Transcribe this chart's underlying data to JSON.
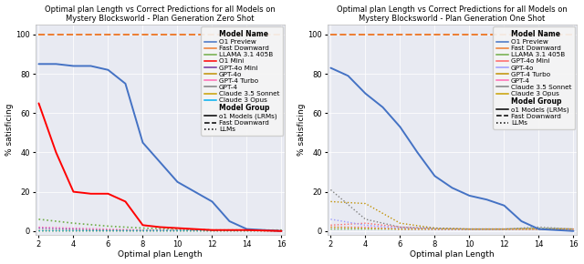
{
  "left_title": "Optimal plan Length vs Correct Predictions for all Models on\nMystery Blocksworld - Plan Generation Zero Shot",
  "right_title": "Optimal plan Length vs Correct Predictions for all Models on\nMystery Blocksworld - Plan Generation One Shot",
  "xlabel": "Optimal plan Length",
  "ylabel": "% satisficing",
  "x_ticks": [
    2,
    4,
    6,
    8,
    10,
    12,
    14,
    16
  ],
  "xlim": [
    1.8,
    16.2
  ],
  "ylim": [
    -2,
    105
  ],
  "y_ticks": [
    0,
    20,
    40,
    60,
    80,
    100
  ],
  "left_series": [
    {
      "label": "O1 Preview",
      "color": "#4472c4",
      "linestyle": "solid",
      "linewidth": 1.4,
      "zorder": 5,
      "x": [
        2,
        3,
        4,
        5,
        6,
        7,
        8,
        9,
        10,
        11,
        12,
        13,
        14,
        16
      ],
      "y": [
        85,
        85,
        84,
        84,
        82,
        75,
        45,
        35,
        25,
        20,
        15,
        5,
        1,
        0
      ]
    },
    {
      "label": "Fast Downward",
      "color": "#ed7d31",
      "linestyle": "dashed",
      "linewidth": 1.4,
      "zorder": 4,
      "x": [
        2,
        16
      ],
      "y": [
        100,
        100
      ]
    },
    {
      "label": "LLAMA 3.1 405B",
      "color": "#70ad47",
      "linestyle": "dotted",
      "linewidth": 1.2,
      "zorder": 3,
      "x": [
        2,
        4,
        6,
        8,
        10,
        12,
        14,
        16
      ],
      "y": [
        6,
        4,
        2.5,
        1.5,
        1,
        0.5,
        0.5,
        0.5
      ]
    },
    {
      "label": "O1 Mini",
      "color": "#ff0000",
      "linestyle": "solid",
      "linewidth": 1.4,
      "zorder": 5,
      "x": [
        2,
        3,
        4,
        5,
        6,
        7,
        8,
        9,
        10,
        11,
        12,
        13,
        14,
        16
      ],
      "y": [
        65,
        40,
        20,
        19,
        19,
        15,
        3,
        2,
        1.5,
        1,
        0.5,
        0.5,
        0.5,
        0
      ]
    },
    {
      "label": "GPT-4o Mini",
      "color": "#7030a0",
      "linestyle": "dotted",
      "linewidth": 1.0,
      "zorder": 2,
      "x": [
        2,
        4,
        6,
        8,
        10,
        12,
        14,
        16
      ],
      "y": [
        1.5,
        1,
        0.5,
        0.5,
        0.5,
        0.5,
        0.5,
        0.5
      ]
    },
    {
      "label": "GPT-4o",
      "color": "#c09000",
      "linestyle": "dotted",
      "linewidth": 1.0,
      "zorder": 2,
      "x": [
        2,
        4,
        6,
        8,
        10,
        12,
        14,
        16
      ],
      "y": [
        0.5,
        0.5,
        0.5,
        0.5,
        0.5,
        0.5,
        0.5,
        0.5
      ]
    },
    {
      "label": "GPT-4 Turbo",
      "color": "#ff69b4",
      "linestyle": "dotted",
      "linewidth": 1.0,
      "zorder": 2,
      "x": [
        2,
        4,
        6,
        8,
        10,
        12,
        14,
        16
      ],
      "y": [
        2,
        1.5,
        1,
        0.5,
        0.5,
        0.5,
        0.5,
        0.5
      ]
    },
    {
      "label": "GPT-4",
      "color": "#808080",
      "linestyle": "dotted",
      "linewidth": 1.0,
      "zorder": 2,
      "x": [
        2,
        4,
        6,
        8,
        10,
        12,
        14,
        16
      ],
      "y": [
        0.5,
        0.5,
        0.5,
        0.5,
        0.5,
        0.5,
        0.5,
        0.5
      ]
    },
    {
      "label": "Claude 3.5 Sonnet",
      "color": "#c8a000",
      "linestyle": "dotted",
      "linewidth": 1.0,
      "zorder": 2,
      "x": [
        2,
        4,
        6,
        8,
        10,
        12,
        14,
        16
      ],
      "y": [
        0.5,
        0.5,
        0.5,
        0.5,
        0.5,
        0.5,
        0.5,
        0.5
      ]
    },
    {
      "label": "Claude 3 Opus",
      "color": "#00b0f0",
      "linestyle": "dotted",
      "linewidth": 1.0,
      "zorder": 2,
      "x": [
        2,
        4,
        6,
        8,
        10,
        12,
        14,
        16
      ],
      "y": [
        0.5,
        0.5,
        0.5,
        0.5,
        0.5,
        0.5,
        0.5,
        0.5
      ]
    }
  ],
  "left_legend": [
    {
      "label": "Model Name",
      "header": true
    },
    {
      "label": "O1 Preview",
      "color": "#4472c4",
      "linestyle": "solid"
    },
    {
      "label": "Fast Downward",
      "color": "#ed7d31",
      "linestyle": "solid"
    },
    {
      "label": "LLAMA 3.1 405B",
      "color": "#70ad47",
      "linestyle": "solid"
    },
    {
      "label": "O1 Mini",
      "color": "#ff0000",
      "linestyle": "solid"
    },
    {
      "label": "GPT-4o Mini",
      "color": "#7030a0",
      "linestyle": "solid"
    },
    {
      "label": "GPT-4o",
      "color": "#c09000",
      "linestyle": "solid"
    },
    {
      "label": "GPT-4 Turbo",
      "color": "#ff69b4",
      "linestyle": "solid"
    },
    {
      "label": "GPT-4",
      "color": "#808080",
      "linestyle": "solid"
    },
    {
      "label": "Claude 3.5 Sonnet",
      "color": "#c8a000",
      "linestyle": "solid"
    },
    {
      "label": "Claude 3 Opus",
      "color": "#00b0f0",
      "linestyle": "solid"
    },
    {
      "label": "Model Group",
      "header": true
    },
    {
      "label": "o1 Models (LRMs)",
      "color": "#000000",
      "linestyle": "solid"
    },
    {
      "label": "Fast Downward",
      "color": "#000000",
      "linestyle": "dashed"
    },
    {
      "label": "LLMs",
      "color": "#000000",
      "linestyle": "dotted"
    }
  ],
  "right_series": [
    {
      "label": "O1 Preview",
      "color": "#4472c4",
      "linestyle": "solid",
      "linewidth": 1.4,
      "zorder": 5,
      "x": [
        2,
        3,
        4,
        5,
        6,
        7,
        8,
        9,
        10,
        11,
        12,
        13,
        14,
        16
      ],
      "y": [
        83,
        79,
        70,
        63,
        53,
        40,
        28,
        22,
        18,
        16,
        13,
        5,
        1,
        0
      ]
    },
    {
      "label": "Fast Downward",
      "color": "#ed7d31",
      "linestyle": "dashed",
      "linewidth": 1.4,
      "zorder": 4,
      "x": [
        2,
        16
      ],
      "y": [
        100,
        100
      ]
    },
    {
      "label": "LLAMA 3.1 405B",
      "color": "#70ad47",
      "linestyle": "dotted",
      "linewidth": 1.0,
      "zorder": 2,
      "x": [
        2,
        4,
        6,
        8,
        10,
        12,
        14,
        16
      ],
      "y": [
        1,
        1,
        1,
        1,
        1,
        1,
        1.5,
        1
      ]
    },
    {
      "label": "GPT-4o Mini",
      "color": "#ff6666",
      "linestyle": "dotted",
      "linewidth": 1.0,
      "zorder": 2,
      "x": [
        2,
        4,
        6,
        8,
        10,
        12,
        14,
        16
      ],
      "y": [
        3,
        4,
        2,
        1,
        1,
        1,
        1,
        1
      ]
    },
    {
      "label": "GPT-4o",
      "color": "#9999ff",
      "linestyle": "dotted",
      "linewidth": 1.0,
      "zorder": 2,
      "x": [
        2,
        4,
        6,
        8,
        10,
        12,
        14,
        16
      ],
      "y": [
        6,
        3,
        1.5,
        1,
        1,
        1,
        1,
        1
      ]
    },
    {
      "label": "GPT-4 Turbo",
      "color": "#c09000",
      "linestyle": "dotted",
      "linewidth": 1.0,
      "zorder": 2,
      "x": [
        2,
        4,
        6,
        8,
        10,
        12,
        14,
        16
      ],
      "y": [
        15,
        14,
        4,
        1.5,
        1,
        1,
        1,
        1
      ]
    },
    {
      "label": "GPT-4",
      "color": "#ff69b4",
      "linestyle": "dotted",
      "linewidth": 1.0,
      "zorder": 2,
      "x": [
        2,
        4,
        6,
        8,
        10,
        12,
        14,
        16
      ],
      "y": [
        2,
        2,
        1,
        1,
        1,
        1,
        1,
        1
      ]
    },
    {
      "label": "Claude 3.5 Sonnet",
      "color": "#808080",
      "linestyle": "dotted",
      "linewidth": 1.0,
      "zorder": 2,
      "x": [
        2,
        4,
        6,
        8,
        10,
        12,
        14,
        16
      ],
      "y": [
        21,
        6,
        2,
        1.5,
        1,
        1,
        2,
        1
      ]
    },
    {
      "label": "Claude 3 Opus",
      "color": "#c8a000",
      "linestyle": "dotted",
      "linewidth": 1.0,
      "zorder": 2,
      "x": [
        2,
        4,
        6,
        8,
        10,
        12,
        14,
        16
      ],
      "y": [
        2,
        1.5,
        1,
        1,
        1,
        1,
        1,
        1
      ]
    }
  ],
  "right_legend": [
    {
      "label": "Model Name",
      "header": true
    },
    {
      "label": "O1 Preview",
      "color": "#4472c4",
      "linestyle": "solid"
    },
    {
      "label": "Fast Downward",
      "color": "#ed7d31",
      "linestyle": "solid"
    },
    {
      "label": "LLAMA 3.1 405B",
      "color": "#70ad47",
      "linestyle": "solid"
    },
    {
      "label": "GPT-4o Mini",
      "color": "#ff6666",
      "linestyle": "solid"
    },
    {
      "label": "GPT-4o",
      "color": "#9999ff",
      "linestyle": "solid"
    },
    {
      "label": "GPT-4 Turbo",
      "color": "#c09000",
      "linestyle": "solid"
    },
    {
      "label": "GPT-4",
      "color": "#ff69b4",
      "linestyle": "solid"
    },
    {
      "label": "Claude 3.5 Sonnet",
      "color": "#808080",
      "linestyle": "solid"
    },
    {
      "label": "Claude 3 Opus",
      "color": "#c8a000",
      "linestyle": "solid"
    },
    {
      "label": "Model Group",
      "header": true
    },
    {
      "label": "o1 Models (LRMs)",
      "color": "#000000",
      "linestyle": "solid"
    },
    {
      "label": "Fast Downward",
      "color": "#000000",
      "linestyle": "dashed"
    },
    {
      "label": "LLMs",
      "color": "#000000",
      "linestyle": "dotted"
    }
  ],
  "bg_color": "#e8eaf2",
  "title_fontsize": 6.0,
  "legend_fontsize": 5.2,
  "tick_fontsize": 6,
  "label_fontsize": 6.5
}
